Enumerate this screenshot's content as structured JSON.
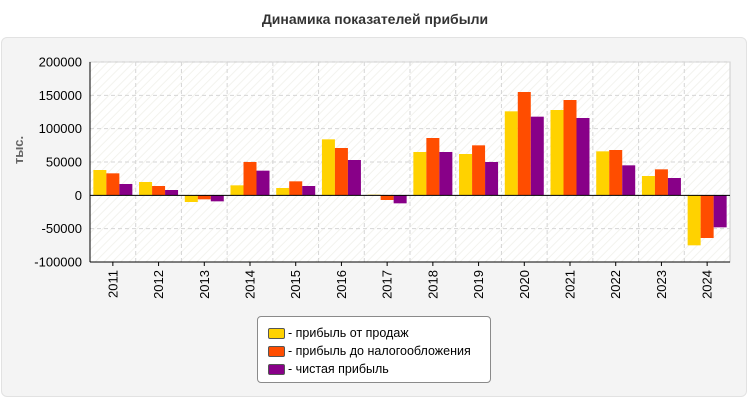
{
  "chart_data": {
    "type": "bar",
    "title": "Динамика показателей прибыли",
    "ylabel": "тыс.",
    "xlabel": "",
    "ylim": [
      -100000,
      200000
    ],
    "yticks": [
      200000,
      150000,
      100000,
      50000,
      0,
      -50000,
      -100000
    ],
    "grid": true,
    "legend_position": "bottom",
    "categories": [
      "2011",
      "2012",
      "2013",
      "2014",
      "2015",
      "2016",
      "2017",
      "2018",
      "2019",
      "2020",
      "2021",
      "2022",
      "2023",
      "2024"
    ],
    "series": [
      {
        "name": "- прибыль от продаж",
        "color": "#ffd200",
        "values": [
          38000,
          20000,
          -10000,
          15000,
          11000,
          84000,
          1000,
          65000,
          62000,
          126000,
          128000,
          66000,
          29000,
          -75000
        ]
      },
      {
        "name": "- прибыль до налогообложения",
        "color": "#ff4d00",
        "values": [
          33000,
          14000,
          -6000,
          50000,
          21000,
          71000,
          -7000,
          86000,
          75000,
          155000,
          143000,
          68000,
          39000,
          -64000
        ]
      },
      {
        "name": "- чистая прибыль",
        "color": "#880088",
        "values": [
          17000,
          8000,
          -9000,
          37000,
          14000,
          53000,
          -12000,
          65000,
          50000,
          118000,
          116000,
          45000,
          26000,
          -48000
        ]
      }
    ]
  }
}
